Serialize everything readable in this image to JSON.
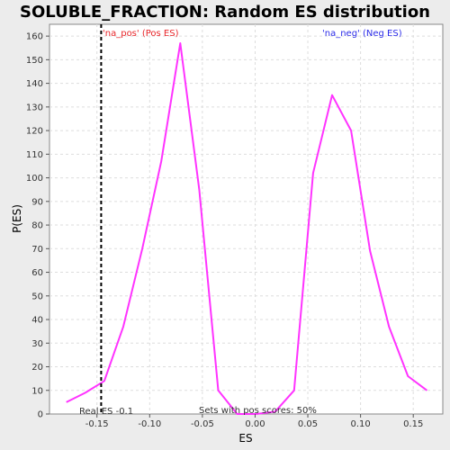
{
  "chart_data": {
    "type": "line",
    "title": "SOLUBLE_FRACTION: Random ES distribution",
    "xlabel": "ES",
    "ylabel": "P(ES)",
    "xlim": [
      -0.195,
      0.178
    ],
    "ylim": [
      0,
      165
    ],
    "x_ticks": [
      "-0.15",
      "-0.10",
      "-0.05",
      "0.00",
      "0.05",
      "0.10",
      "0.15"
    ],
    "x_tick_values": [
      -0.15,
      -0.1,
      -0.05,
      0.0,
      0.05,
      0.1,
      0.15
    ],
    "y_ticks": [
      "0",
      "10",
      "20",
      "30",
      "40",
      "50",
      "60",
      "70",
      "80",
      "90",
      "100",
      "110",
      "120",
      "130",
      "140",
      "150",
      "160"
    ],
    "y_tick_values": [
      0,
      10,
      20,
      30,
      40,
      50,
      60,
      70,
      80,
      90,
      100,
      110,
      120,
      130,
      140,
      150,
      160
    ],
    "grid": true,
    "series": [
      {
        "color": "#ff33ff",
        "x": [
          -0.179,
          -0.161,
          -0.143,
          -0.125,
          -0.107,
          -0.089,
          -0.071,
          -0.053,
          -0.035,
          -0.017,
          0.001,
          0.019,
          0.037,
          0.055,
          0.073,
          0.091,
          0.109,
          0.127,
          0.145,
          0.163
        ],
        "y": [
          5,
          9,
          14,
          37,
          70,
          107,
          157,
          95,
          10,
          0,
          0,
          1,
          10,
          102,
          135,
          120,
          69,
          37,
          16,
          10
        ]
      }
    ],
    "real_es": -0.146,
    "annotations": {
      "pos_label": "'na_pos' (Pos ES)",
      "neg_label": "'na_neg' (Neg ES)",
      "real_es_label": "Real ES -0.1",
      "sets_label": "Sets with pos scores: 50%"
    },
    "colors": {
      "curve": "#ff33ff",
      "pos_label": "#e8262a",
      "neg_label": "#2c2ce8",
      "real_es_line": "#000000"
    }
  }
}
